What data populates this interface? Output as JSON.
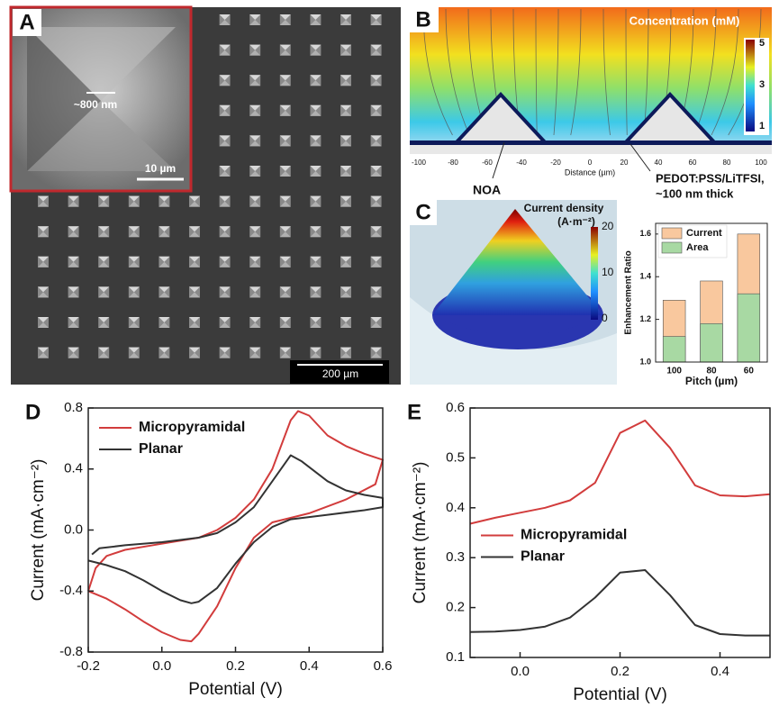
{
  "panel_a": {
    "label": "A",
    "inset_size": "~800 nm",
    "inset_scale": "10 µm",
    "scale": "200 µm"
  },
  "panel_b": {
    "label": "B",
    "legend_title": "Concentration (mM)",
    "colorbar_ticks": [
      5,
      3,
      1
    ],
    "distance_ticks": [
      -100,
      -80,
      -60,
      -40,
      -20,
      0,
      20,
      40,
      60,
      80,
      100
    ],
    "xlabel": "Distance (µm)",
    "substrate": "NOA",
    "film_line1": "PEDOT:PSS/LiTFSI,",
    "film_line2": "~100 nm thick"
  },
  "panel_c": {
    "label": "C",
    "legend_title": "Current density",
    "legend_unit": "(A·m⁻²)",
    "colorbar_ticks": [
      20,
      10,
      0
    ]
  },
  "chart_data": [
    {
      "type": "bar",
      "categories": [
        "100",
        "80",
        "60"
      ],
      "xlabel": "Pitch (µm)",
      "ylabel": "Enhancement Ratio",
      "series": [
        {
          "name": "Current",
          "color": "#f9c89e",
          "values": [
            1.29,
            1.38,
            1.6
          ]
        },
        {
          "name": "Area",
          "color": "#a8d9a3",
          "values": [
            1.12,
            1.18,
            1.32
          ]
        }
      ],
      "ylim": [
        1.0,
        1.65
      ],
      "yticks": [
        {
          "value": 1.0,
          "label": "1.0"
        },
        {
          "value": 1.2,
          "label": "1.2"
        },
        {
          "value": 1.4,
          "label": "1.4"
        },
        {
          "value": 1.6,
          "label": "1.6"
        }
      ],
      "legend": "upper left"
    },
    {
      "type": "line",
      "panel_label": "D",
      "xlabel": "Potential (V)",
      "ylabel": "Current (mA·cm⁻²)",
      "xlim": [
        -0.2,
        0.6
      ],
      "xticks": [
        -0.2,
        {
          "value": 0,
          "label": "0.0"
        },
        0.2,
        0.4,
        0.6
      ],
      "ylim": [
        -0.8,
        0.8
      ],
      "yticks": [
        -0.8,
        -0.4,
        {
          "value": 0,
          "label": "0.0"
        },
        0.4,
        0.8
      ],
      "legend": "upper left",
      "series": [
        {
          "name": "Micropyramidal",
          "color": "#d23c3c",
          "x": [
            -0.2,
            -0.18,
            -0.15,
            -0.1,
            0,
            0.1,
            0.15,
            0.2,
            0.25,
            0.3,
            0.35,
            0.37,
            0.4,
            0.45,
            0.5,
            0.55,
            0.6,
            0.58,
            0.5,
            0.4,
            0.3,
            0.25,
            0.2,
            0.15,
            0.1,
            0.08,
            0.05,
            0,
            -0.05,
            -0.1,
            -0.15,
            -0.2
          ],
          "values": [
            -0.4,
            -0.25,
            -0.17,
            -0.13,
            -0.09,
            -0.05,
            0,
            0.08,
            0.2,
            0.4,
            0.72,
            0.78,
            0.75,
            0.62,
            0.55,
            0.5,
            0.46,
            0.3,
            0.2,
            0.11,
            0.05,
            -0.05,
            -0.25,
            -0.5,
            -0.68,
            -0.73,
            -0.72,
            -0.67,
            -0.6,
            -0.52,
            -0.45,
            -0.4
          ]
        },
        {
          "name": "Planar",
          "color": "#333333",
          "x": [
            -0.19,
            -0.17,
            -0.1,
            0,
            0.1,
            0.15,
            0.2,
            0.25,
            0.3,
            0.35,
            0.38,
            0.45,
            0.5,
            0.55,
            0.6,
            0.6,
            0.55,
            0.45,
            0.35,
            0.3,
            0.25,
            0.2,
            0.15,
            0.1,
            0.08,
            0.05,
            0,
            -0.05,
            -0.1,
            -0.15,
            -0.2
          ],
          "values": [
            -0.16,
            -0.12,
            -0.1,
            -0.08,
            -0.05,
            -0.02,
            0.05,
            0.15,
            0.32,
            0.49,
            0.45,
            0.32,
            0.26,
            0.23,
            0.21,
            0.15,
            0.13,
            0.1,
            0.07,
            0.02,
            -0.08,
            -0.22,
            -0.38,
            -0.47,
            -0.48,
            -0.46,
            -0.4,
            -0.33,
            -0.27,
            -0.23,
            -0.2
          ]
        }
      ]
    },
    {
      "type": "line",
      "panel_label": "E",
      "xlabel": "Potential (V)",
      "ylabel": "Current (mA·cm⁻²)",
      "xlim": [
        -0.1,
        0.5
      ],
      "xticks": [
        {
          "value": 0,
          "label": "0.0"
        },
        0.2,
        0.4
      ],
      "ylim": [
        0.1,
        0.6
      ],
      "yticks": [
        0.1,
        0.2,
        0.3,
        0.4,
        0.5,
        0.6
      ],
      "legend": "center left",
      "series": [
        {
          "name": "Micropyramidal",
          "color": "#d23c3c",
          "x": [
            -0.1,
            -0.05,
            0,
            0.05,
            0.1,
            0.15,
            0.2,
            0.25,
            0.3,
            0.35,
            0.4,
            0.45,
            0.5
          ],
          "values": [
            0.368,
            0.38,
            0.39,
            0.4,
            0.415,
            0.45,
            0.55,
            0.575,
            0.52,
            0.445,
            0.425,
            0.423,
            0.427
          ]
        },
        {
          "name": "Planar",
          "color": "#333333",
          "x": [
            -0.1,
            -0.05,
            0,
            0.05,
            0.1,
            0.15,
            0.2,
            0.25,
            0.3,
            0.35,
            0.4,
            0.45,
            0.5
          ],
          "values": [
            0.151,
            0.152,
            0.155,
            0.162,
            0.18,
            0.22,
            0.27,
            0.275,
            0.225,
            0.165,
            0.147,
            0.144,
            0.144
          ]
        }
      ]
    }
  ]
}
